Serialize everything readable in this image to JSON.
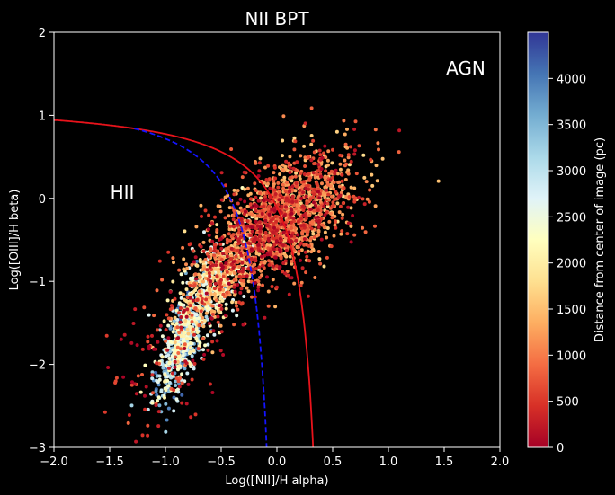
{
  "chart_data": {
    "type": "scatter",
    "title": "NII BPT",
    "xlabel": "Log([NII]/H alpha)",
    "ylabel": "Log([OIII]/H beta)",
    "xlim": [
      -2.0,
      2.0
    ],
    "ylim": [
      -3,
      2
    ],
    "xticks": [
      "−2.0",
      "−1.5",
      "−1.0",
      "−0.5",
      "0.0",
      "0.5",
      "1.0",
      "1.5",
      "2.0"
    ],
    "yticks": [
      "−3",
      "−2",
      "−1",
      "0",
      "1",
      "2"
    ],
    "grid": false,
    "annotations": [
      {
        "text": "HII",
        "x": -1.4,
        "y": 0.08
      },
      {
        "text": "AGN",
        "x": 1.68,
        "y": 1.55
      }
    ],
    "lines": [
      {
        "style": "solid",
        "color": "#e8131b"
      },
      {
        "style": "dashed",
        "color": "#1414ff"
      }
    ],
    "colorbar": {
      "label": "Distance from center of image (pc)",
      "range": [
        0,
        4500
      ],
      "ticks": [
        "0",
        "500",
        "1000",
        "1500",
        "2000",
        "2500",
        "3000",
        "3500",
        "4000"
      ],
      "colormap": "RdYlBu",
      "stops": [
        "#a50026",
        "#d73027",
        "#f46d43",
        "#fdae61",
        "#fee090",
        "#ffffbf",
        "#e0f3f8",
        "#abd9e9",
        "#74add1",
        "#4575b4",
        "#313695"
      ]
    },
    "clusters": [
      {
        "x": -0.85,
        "y": -1.7,
        "sx": 0.13,
        "sy": 0.38,
        "rho": 0.8,
        "n": 650,
        "dist": [
          2000,
          4200
        ]
      },
      {
        "x": -0.55,
        "y": -1.0,
        "sx": 0.18,
        "sy": 0.32,
        "rho": 0.6,
        "n": 450,
        "dist": [
          1200,
          2800
        ]
      },
      {
        "x": -0.05,
        "y": -0.35,
        "sx": 0.3,
        "sy": 0.42,
        "rho": 0.55,
        "n": 1100,
        "dist": [
          0,
          1500
        ]
      },
      {
        "x": 0.25,
        "y": -0.1,
        "sx": 0.28,
        "sy": 0.35,
        "rho": 0.4,
        "n": 500,
        "dist": [
          500,
          1800
        ]
      },
      {
        "x": -0.9,
        "y": -1.7,
        "sx": 0.3,
        "sy": 0.5,
        "rho": 0.5,
        "n": 180,
        "dist": [
          0,
          900
        ]
      }
    ]
  }
}
